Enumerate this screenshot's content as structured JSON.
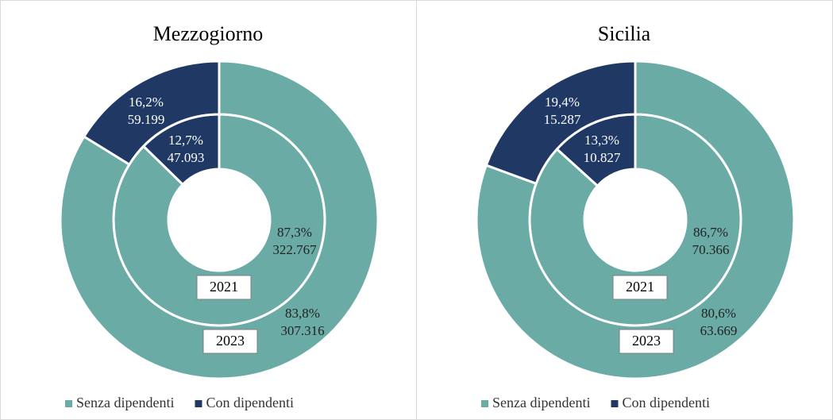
{
  "chart_data": [
    {
      "type": "donut",
      "title": "Mezzogiorno",
      "categories": [
        "Senza dipendenti",
        "Con dipendenti"
      ],
      "colors": [
        "#6aaba6",
        "#1f3864"
      ],
      "rings": [
        {
          "name": "2021",
          "values": [
            87.3,
            12.7
          ],
          "value_labels": [
            "87,3%",
            "12,7%"
          ],
          "counts": [
            322767,
            47093
          ],
          "count_labels": [
            "322.767",
            "47.093"
          ]
        },
        {
          "name": "2023",
          "values": [
            83.8,
            16.2
          ],
          "value_labels": [
            "83,8%",
            "16,2%"
          ],
          "counts": [
            307316,
            59199
          ],
          "count_labels": [
            "307.316",
            "59.199"
          ]
        }
      ]
    },
    {
      "type": "donut",
      "title": "Sicilia",
      "categories": [
        "Senza dipendenti",
        "Con dipendenti"
      ],
      "colors": [
        "#6aaba6",
        "#1f3864"
      ],
      "rings": [
        {
          "name": "2021",
          "values": [
            86.7,
            13.3
          ],
          "value_labels": [
            "86,7%",
            "13,3%"
          ],
          "counts": [
            70366,
            10827
          ],
          "count_labels": [
            "70.366",
            "10.827"
          ]
        },
        {
          "name": "2023",
          "values": [
            80.6,
            19.4
          ],
          "value_labels": [
            "80,6%",
            "19,4%"
          ],
          "counts": [
            63669,
            15287
          ],
          "count_labels": [
            "63.669",
            "15.287"
          ]
        }
      ]
    }
  ]
}
